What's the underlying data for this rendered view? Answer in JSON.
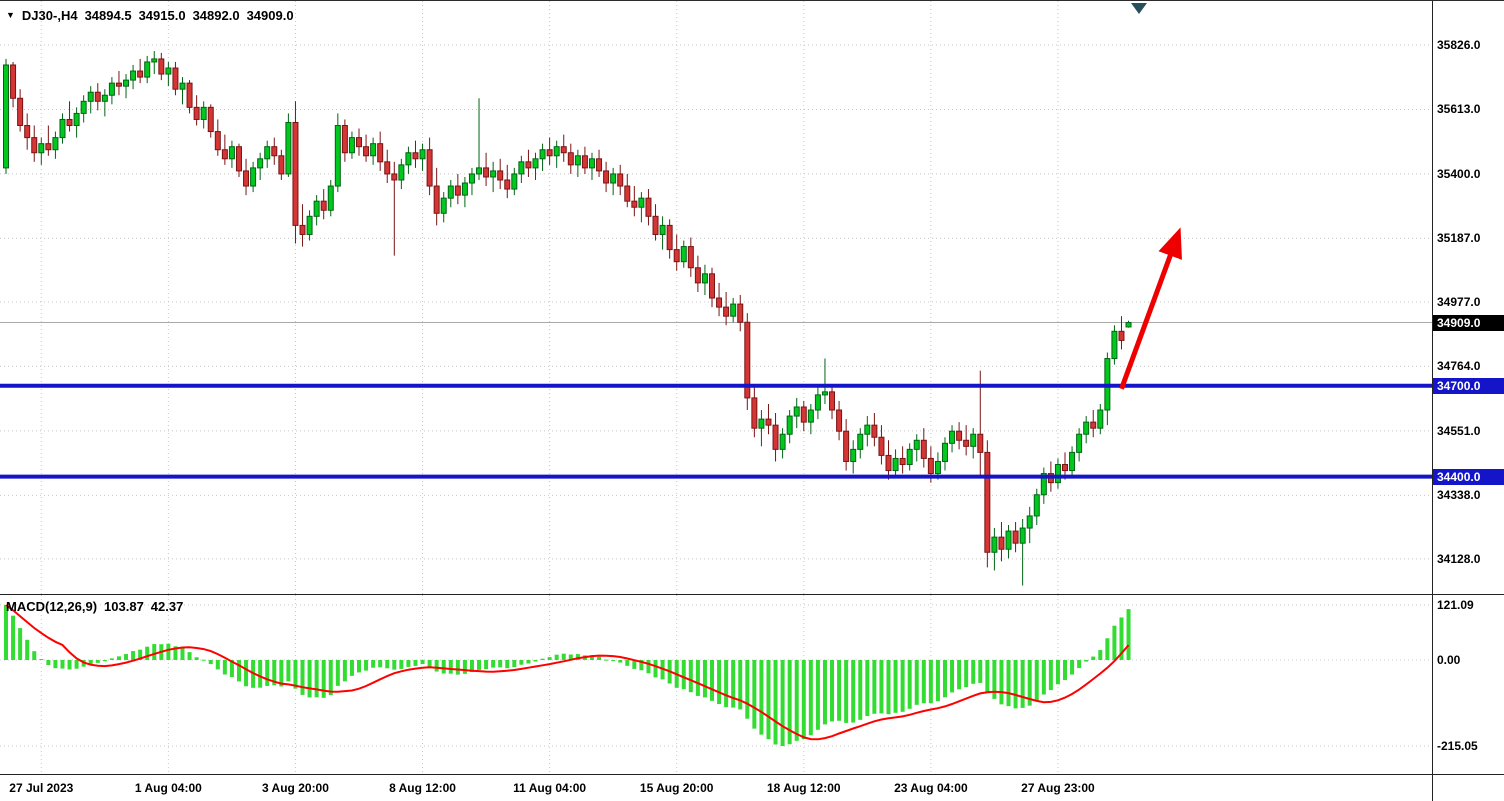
{
  "window": {
    "symbol_info": {
      "dropdown_icon": "▼",
      "symbol_period": "DJ30-,H4",
      "open": "34894.5",
      "high": "34915.0",
      "low": "34892.0",
      "close": "34909.0"
    },
    "macd_info": {
      "label": "MACD(12,26,9)",
      "macd_value": "103.87",
      "signal_value": "42.37"
    }
  },
  "chart_data": {
    "type": "candlestick",
    "symbol": "DJ30-",
    "timeframe": "H4",
    "colors": {
      "background": "#FFFFFF",
      "grid": "#C8C8C8",
      "bull": "#00C81E",
      "bull_edge": "#006414",
      "bear": "#D43535",
      "bear_edge": "#7A1414",
      "histogram": "#32DC32",
      "signal": "#FF0000",
      "level": "#1414C8",
      "current_price_line": "#A9A9A9",
      "current_price_tag_bg": "#000000",
      "arrow": "#EE0000"
    },
    "price_axis": {
      "ticks": [
        {
          "label": "35826.0",
          "value": 35826
        },
        {
          "label": "35613.0",
          "value": 35613
        },
        {
          "label": "35400.0",
          "value": 35400
        },
        {
          "label": "35187.0",
          "value": 35187
        },
        {
          "label": "34977.0",
          "value": 34977
        },
        {
          "label": "34764.0",
          "value": 34764
        },
        {
          "label": "34551.0",
          "value": 34551
        },
        {
          "label": "34338.0",
          "value": 34338
        },
        {
          "label": "34128.0",
          "value": 34128
        }
      ]
    },
    "current_price": {
      "label": "34909.0",
      "value": 34909
    },
    "levels": [
      {
        "label": "34700.0",
        "value": 34700
      },
      {
        "label": "34400.0",
        "value": 34400
      }
    ],
    "time_axis": {
      "ticks": [
        {
          "label": "27 Jul 2023",
          "index": 5
        },
        {
          "label": "1 Aug 04:00",
          "index": 23
        },
        {
          "label": "3 Aug 20:00",
          "index": 41
        },
        {
          "label": "8 Aug 12:00",
          "index": 59
        },
        {
          "label": "11 Aug 04:00",
          "index": 77
        },
        {
          "label": "15 Aug 20:00",
          "index": 95
        },
        {
          "label": "18 Aug 12:00",
          "index": 113
        },
        {
          "label": "23 Aug 04:00",
          "index": 131
        },
        {
          "label": "27 Aug 23:00",
          "index": 149
        }
      ]
    },
    "macd_axis": {
      "ticks": [
        {
          "label": "121.09",
          "value": 121.09
        },
        {
          "label": "0.00",
          "value": 0.0
        },
        {
          "label": "-215.05",
          "value": -215.05
        }
      ]
    },
    "indicator": {
      "name": "MACD",
      "fast": 12,
      "slow": 26,
      "signal": 9
    },
    "annotations": [
      {
        "type": "arrow",
        "from": {
          "index": 158,
          "price": 34690
        },
        "to": {
          "index": 166,
          "price": 35200
        }
      }
    ],
    "candles": [
      [
        35420,
        35780,
        35400,
        35760
      ],
      [
        35760,
        35770,
        35620,
        35650
      ],
      [
        35650,
        35680,
        35540,
        35560
      ],
      [
        35560,
        35600,
        35480,
        35520
      ],
      [
        35520,
        35560,
        35440,
        35470
      ],
      [
        35470,
        35520,
        35430,
        35500
      ],
      [
        35500,
        35560,
        35460,
        35480
      ],
      [
        35480,
        35540,
        35450,
        35520
      ],
      [
        35520,
        35600,
        35500,
        35580
      ],
      [
        35580,
        35640,
        35540,
        35560
      ],
      [
        35560,
        35620,
        35520,
        35600
      ],
      [
        35600,
        35660,
        35570,
        35640
      ],
      [
        35640,
        35690,
        35600,
        35670
      ],
      [
        35670,
        35700,
        35610,
        35640
      ],
      [
        35640,
        35680,
        35590,
        35660
      ],
      [
        35660,
        35720,
        35630,
        35700
      ],
      [
        35700,
        35740,
        35660,
        35690
      ],
      [
        35690,
        35730,
        35650,
        35710
      ],
      [
        35710,
        35760,
        35680,
        35740
      ],
      [
        35740,
        35780,
        35700,
        35720
      ],
      [
        35720,
        35790,
        35700,
        35770
      ],
      [
        35770,
        35806,
        35730,
        35780
      ],
      [
        35780,
        35800,
        35710,
        35730
      ],
      [
        35730,
        35770,
        35690,
        35750
      ],
      [
        35750,
        35770,
        35660,
        35680
      ],
      [
        35680,
        35720,
        35630,
        35700
      ],
      [
        35700,
        35710,
        35600,
        35620
      ],
      [
        35620,
        35660,
        35560,
        35580
      ],
      [
        35580,
        35640,
        35550,
        35620
      ],
      [
        35620,
        35630,
        35520,
        35540
      ],
      [
        35540,
        35580,
        35460,
        35480
      ],
      [
        35480,
        35530,
        35430,
        35450
      ],
      [
        35450,
        35510,
        35420,
        35490
      ],
      [
        35490,
        35500,
        35390,
        35410
      ],
      [
        35410,
        35450,
        35330,
        35360
      ],
      [
        35360,
        35440,
        35340,
        35420
      ],
      [
        35420,
        35470,
        35380,
        35450
      ],
      [
        35450,
        35510,
        35420,
        35490
      ],
      [
        35490,
        35520,
        35430,
        35460
      ],
      [
        35460,
        35480,
        35380,
        35400
      ],
      [
        35400,
        35600,
        35390,
        35570
      ],
      [
        35570,
        35640,
        35170,
        35230
      ],
      [
        35230,
        35300,
        35160,
        35200
      ],
      [
        35200,
        35280,
        35180,
        35260
      ],
      [
        35260,
        35330,
        35230,
        35310
      ],
      [
        35310,
        35350,
        35250,
        35280
      ],
      [
        35280,
        35380,
        35260,
        35360
      ],
      [
        35360,
        35600,
        35340,
        35560
      ],
      [
        35560,
        35580,
        35440,
        35470
      ],
      [
        35470,
        35540,
        35450,
        35520
      ],
      [
        35520,
        35550,
        35460,
        35490
      ],
      [
        35490,
        35530,
        35440,
        35460
      ],
      [
        35460,
        35520,
        35430,
        35500
      ],
      [
        35500,
        35540,
        35410,
        35440
      ],
      [
        35440,
        35480,
        35370,
        35400
      ],
      [
        35400,
        35440,
        35130,
        35380
      ],
      [
        35380,
        35450,
        35350,
        35430
      ],
      [
        35430,
        35490,
        35400,
        35470
      ],
      [
        35470,
        35510,
        35420,
        35450
      ],
      [
        35450,
        35500,
        35410,
        35480
      ],
      [
        35480,
        35520,
        35330,
        35360
      ],
      [
        35360,
        35420,
        35230,
        35270
      ],
      [
        35270,
        35340,
        35240,
        35320
      ],
      [
        35320,
        35380,
        35290,
        35360
      ],
      [
        35360,
        35400,
        35300,
        35330
      ],
      [
        35330,
        35390,
        35290,
        35370
      ],
      [
        35370,
        35420,
        35330,
        35400
      ],
      [
        35400,
        35650,
        35380,
        35420
      ],
      [
        35420,
        35470,
        35360,
        35390
      ],
      [
        35390,
        35440,
        35340,
        35410
      ],
      [
        35410,
        35450,
        35350,
        35380
      ],
      [
        35380,
        35430,
        35320,
        35350
      ],
      [
        35350,
        35420,
        35330,
        35400
      ],
      [
        35400,
        35460,
        35370,
        35440
      ],
      [
        35440,
        35480,
        35390,
        35420
      ],
      [
        35420,
        35470,
        35380,
        35450
      ],
      [
        35450,
        35500,
        35410,
        35480
      ],
      [
        35480,
        35520,
        35430,
        35460
      ],
      [
        35460,
        35510,
        35420,
        35490
      ],
      [
        35490,
        35530,
        35440,
        35470
      ],
      [
        35470,
        35500,
        35400,
        35430
      ],
      [
        35430,
        35480,
        35390,
        35460
      ],
      [
        35460,
        35490,
        35400,
        35420
      ],
      [
        35420,
        35470,
        35380,
        35450
      ],
      [
        35450,
        35480,
        35390,
        35410
      ],
      [
        35410,
        35440,
        35340,
        35370
      ],
      [
        35370,
        35420,
        35330,
        35400
      ],
      [
        35400,
        35430,
        35330,
        35360
      ],
      [
        35360,
        35400,
        35290,
        35310
      ],
      [
        35310,
        35360,
        35260,
        35290
      ],
      [
        35290,
        35340,
        35240,
        35320
      ],
      [
        35320,
        35350,
        35230,
        35260
      ],
      [
        35260,
        35300,
        35180,
        35200
      ],
      [
        35200,
        35260,
        35150,
        35230
      ],
      [
        35230,
        35250,
        35120,
        35150
      ],
      [
        35150,
        35200,
        35080,
        35110
      ],
      [
        35110,
        35180,
        35090,
        35160
      ],
      [
        35160,
        35190,
        35060,
        35090
      ],
      [
        35090,
        35130,
        35010,
        35040
      ],
      [
        35040,
        35100,
        35000,
        35070
      ],
      [
        35070,
        35090,
        34960,
        34990
      ],
      [
        34990,
        35040,
        34930,
        34960
      ],
      [
        34960,
        35010,
        34900,
        34930
      ],
      [
        34930,
        34990,
        34910,
        34970
      ],
      [
        34970,
        35000,
        34880,
        34910
      ],
      [
        34910,
        34940,
        34620,
        34660
      ],
      [
        34660,
        34700,
        34530,
        34560
      ],
      [
        34560,
        34620,
        34500,
        34590
      ],
      [
        34590,
        34640,
        34540,
        34570
      ],
      [
        34570,
        34610,
        34450,
        34490
      ],
      [
        34490,
        34560,
        34460,
        34540
      ],
      [
        34540,
        34620,
        34510,
        34600
      ],
      [
        34600,
        34660,
        34560,
        34630
      ],
      [
        34630,
        34650,
        34550,
        34580
      ],
      [
        34580,
        34640,
        34540,
        34620
      ],
      [
        34620,
        34700,
        34590,
        34670
      ],
      [
        34670,
        34790,
        34640,
        34680
      ],
      [
        34680,
        34700,
        34590,
        34620
      ],
      [
        34620,
        34650,
        34520,
        34550
      ],
      [
        34550,
        34590,
        34420,
        34450
      ],
      [
        34450,
        34520,
        34410,
        34490
      ],
      [
        34490,
        34560,
        34460,
        34540
      ],
      [
        34540,
        34600,
        34500,
        34570
      ],
      [
        34570,
        34610,
        34500,
        34530
      ],
      [
        34530,
        34570,
        34440,
        34470
      ],
      [
        34470,
        34520,
        34390,
        34420
      ],
      [
        34420,
        34490,
        34400,
        34460
      ],
      [
        34460,
        34500,
        34410,
        34440
      ],
      [
        34440,
        34510,
        34420,
        34490
      ],
      [
        34490,
        34540,
        34450,
        34520
      ],
      [
        34520,
        34560,
        34430,
        34460
      ],
      [
        34460,
        34500,
        34380,
        34410
      ],
      [
        34410,
        34480,
        34390,
        34450
      ],
      [
        34450,
        34530,
        34420,
        34510
      ],
      [
        34510,
        34570,
        34480,
        34550
      ],
      [
        34550,
        34580,
        34490,
        34520
      ],
      [
        34520,
        34570,
        34470,
        34500
      ],
      [
        34500,
        34560,
        34460,
        34540
      ],
      [
        34540,
        34750,
        34400,
        34480
      ],
      [
        34480,
        34520,
        34100,
        34150
      ],
      [
        34150,
        34230,
        34090,
        34200
      ],
      [
        34200,
        34250,
        34120,
        34160
      ],
      [
        34160,
        34240,
        34130,
        34220
      ],
      [
        34220,
        34250,
        34150,
        34180
      ],
      [
        34180,
        34260,
        34040,
        34230
      ],
      [
        34230,
        34300,
        34180,
        34270
      ],
      [
        34270,
        34360,
        34240,
        34340
      ],
      [
        34340,
        34430,
        34310,
        34410
      ],
      [
        34410,
        34450,
        34350,
        34380
      ],
      [
        34380,
        34460,
        34360,
        34440
      ],
      [
        34440,
        34480,
        34390,
        34420
      ],
      [
        34420,
        34500,
        34400,
        34480
      ],
      [
        34480,
        34560,
        34450,
        34540
      ],
      [
        34540,
        34600,
        34510,
        34580
      ],
      [
        34580,
        34620,
        34530,
        34560
      ],
      [
        34560,
        34640,
        34540,
        34620
      ],
      [
        34620,
        34810,
        34570,
        34790
      ],
      [
        34790,
        34900,
        34770,
        34880
      ],
      [
        34880,
        34930,
        34820,
        34850
      ],
      [
        34894.5,
        34915,
        34892,
        34909
      ]
    ]
  }
}
